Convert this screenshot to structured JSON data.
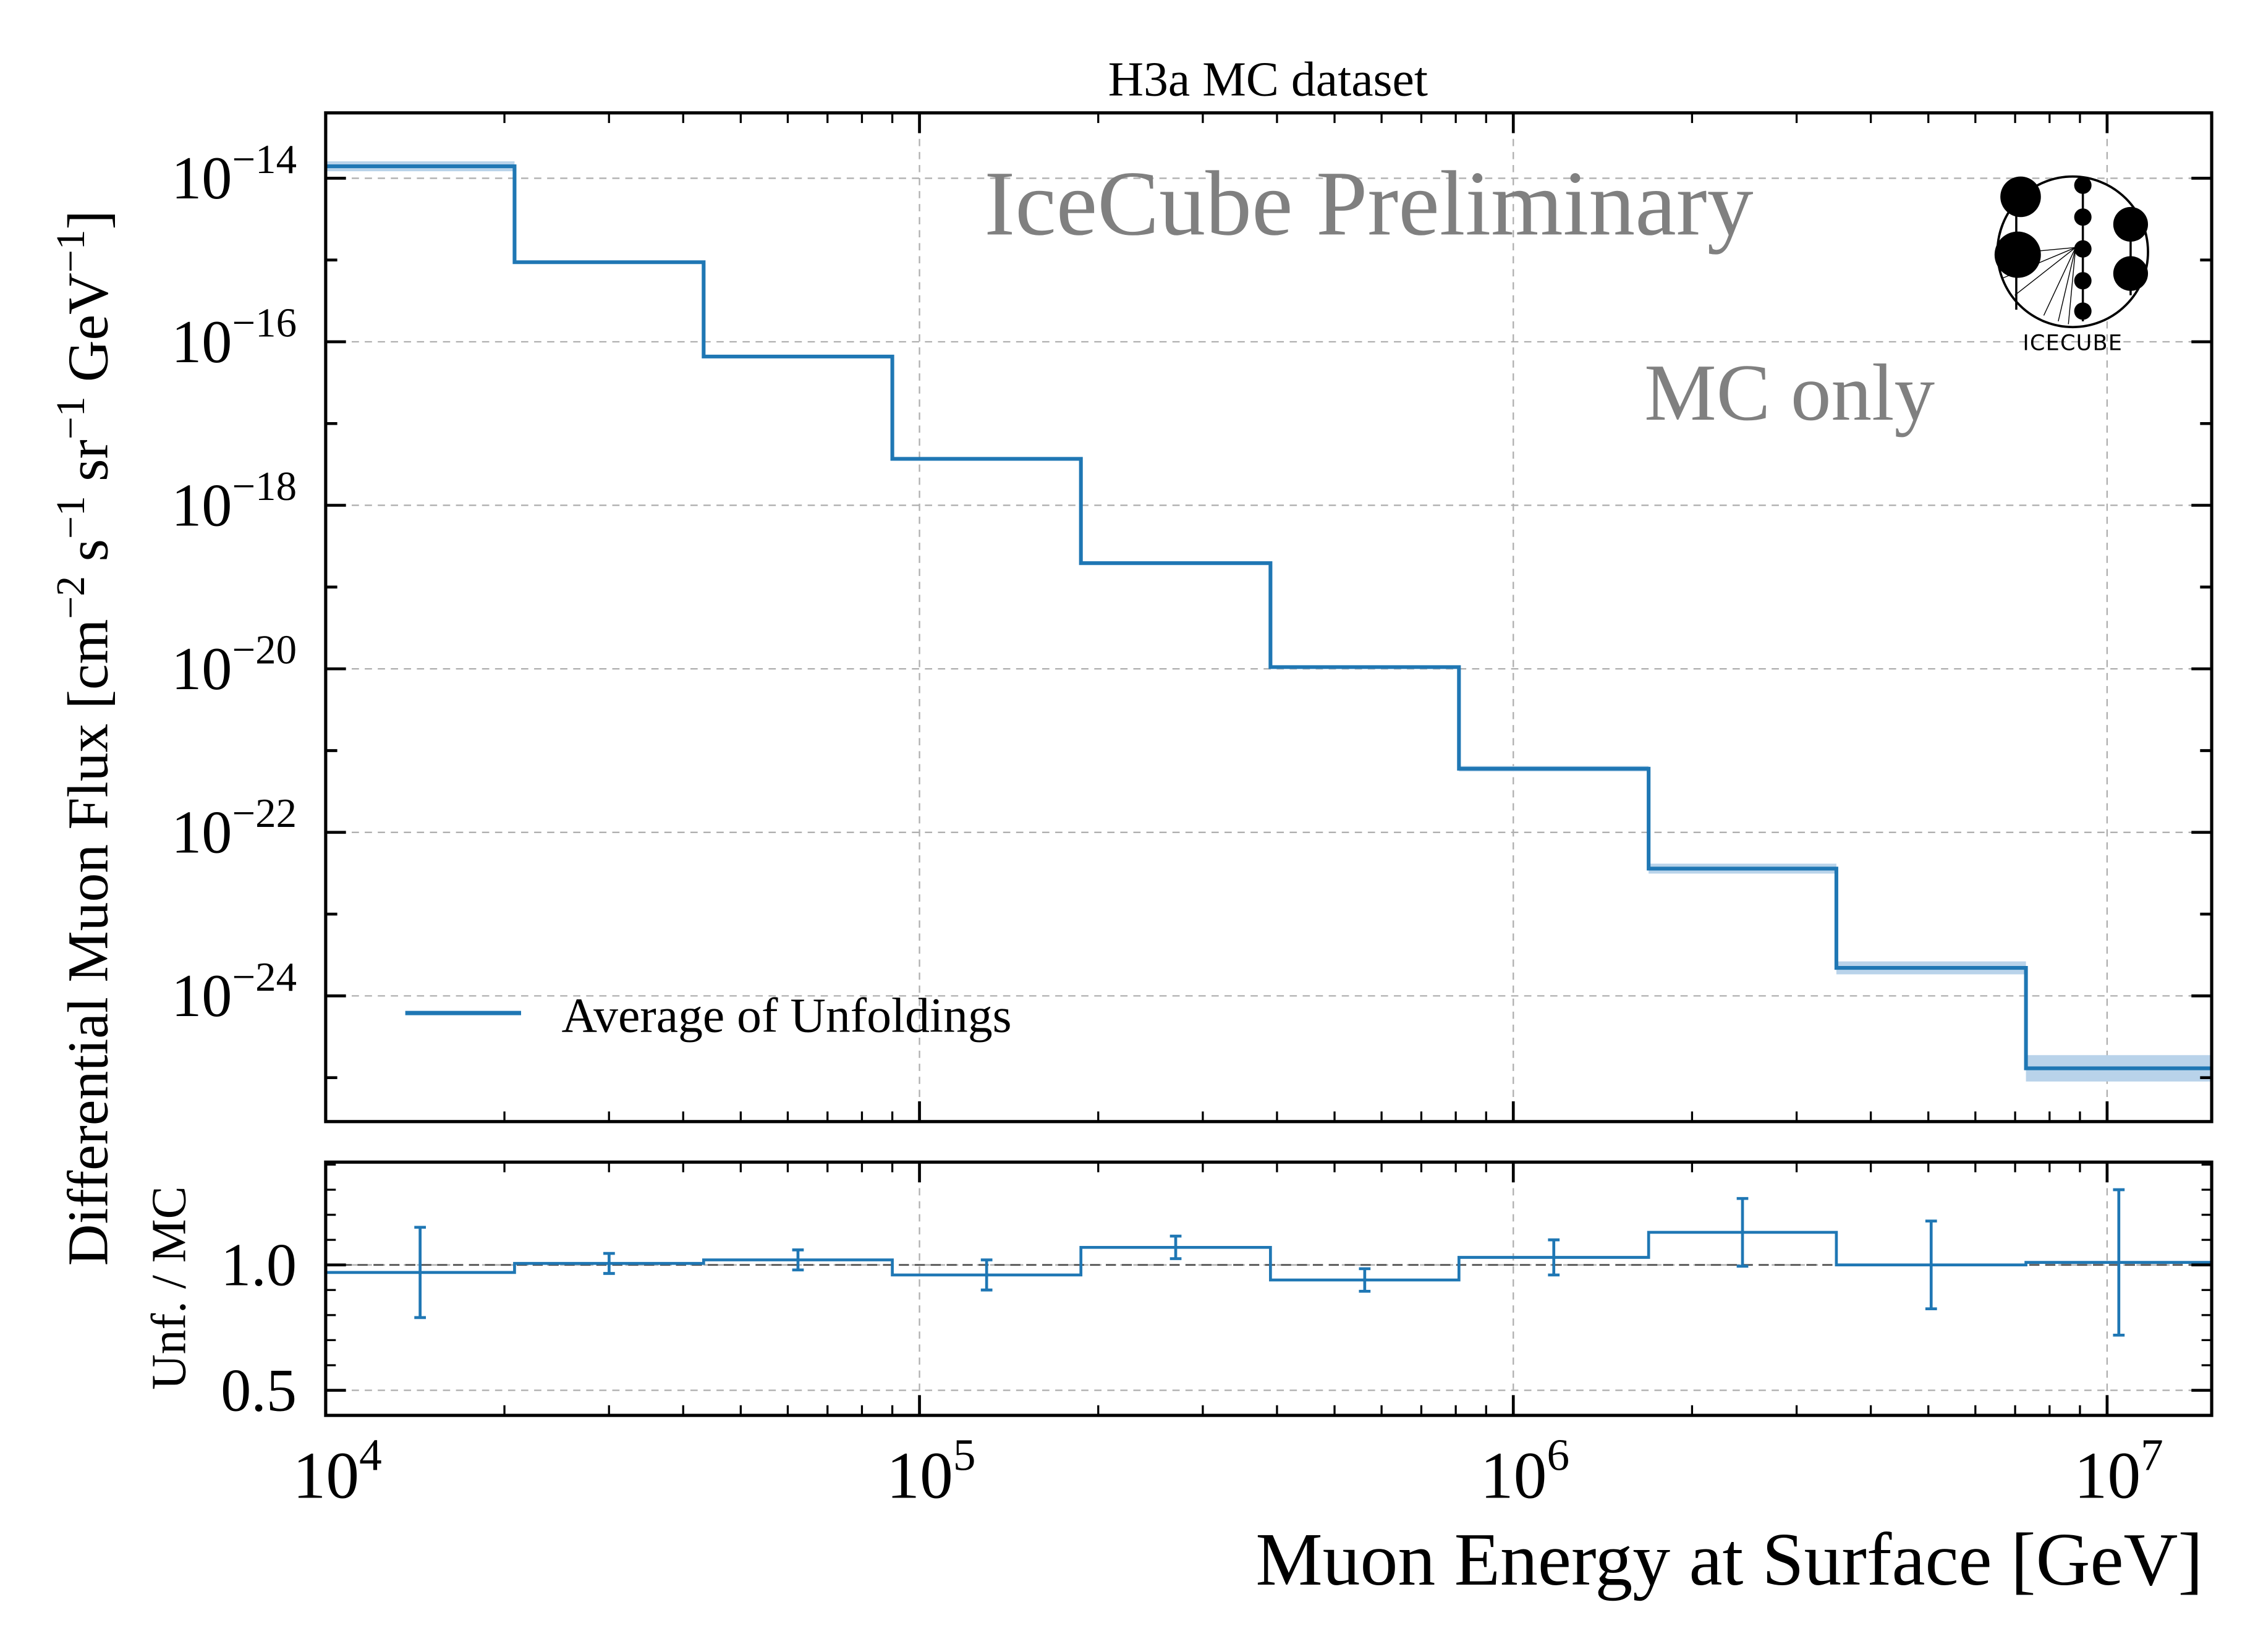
{
  "chart_data": [
    {
      "type": "line",
      "drawstyle": "steps",
      "title": "H3a MC dataset",
      "ylabel": "Differential Muon Flux [cm^{-2} s^{-1} sr^{-1} GeV^{-1}]",
      "ylabel_parts": [
        "Differential Muon Flux [cm",
        "−2",
        " s",
        "−1",
        " sr",
        "−1",
        " GeV",
        "−1",
        "]"
      ],
      "xscale": "log",
      "yscale": "log",
      "xlim": [
        10000,
        15000000
      ],
      "ylim": [
        6.3e-14,
        2.9e-26
      ],
      "y_tick_labels": [
        {
          "value": 1e-14,
          "base": "10",
          "exp": "−14"
        },
        {
          "value": 1e-16,
          "base": "10",
          "exp": "−16"
        },
        {
          "value": 1e-18,
          "base": "10",
          "exp": "−18"
        },
        {
          "value": 1e-20,
          "base": "10",
          "exp": "−20"
        },
        {
          "value": 1e-22,
          "base": "10",
          "exp": "−22"
        },
        {
          "value": 1e-24,
          "base": "10",
          "exp": "−24"
        }
      ],
      "grid": true,
      "bin_edges": [
        10000,
        20800,
        43300,
        90000,
        187000,
        390000,
        810000,
        1690000,
        3500000,
        7300000,
        15000000
      ],
      "series": [
        {
          "name": "Average of Unfoldings",
          "color": "#1f77b4",
          "values": [
            1.4e-14,
            9.4e-16,
            6.6e-17,
            3.7e-18,
            1.96e-19,
            1.05e-20,
            6e-22,
            3.6e-23,
            2.2e-24,
            1.3e-25
          ],
          "band_factor": [
            1.15,
            1.05,
            1.05,
            1.05,
            1.05,
            1.05,
            1.08,
            1.15,
            1.2,
            1.45
          ],
          "band_color": "#b9d3ea"
        }
      ],
      "legend": {
        "placement": "lower-left",
        "label": "Average of Unfoldings"
      },
      "annotations": {
        "preliminary": "IceCube Preliminary",
        "mc_only": "MC only",
        "logo": "IceCube"
      },
      "annotation_color": "#808080"
    },
    {
      "type": "line",
      "drawstyle": "steps",
      "ylabel": "Unf. / MC",
      "xlabel": "Muon Energy at Surface [GeV]",
      "xscale": "log",
      "xlim": [
        10000,
        15000000
      ],
      "ylim": [
        0.4,
        1.41
      ],
      "x_tick_labels": [
        {
          "value": 10000,
          "base": "10",
          "exp": "4"
        },
        {
          "value": 100000,
          "base": "10",
          "exp": "5"
        },
        {
          "value": 1000000,
          "base": "10",
          "exp": "6"
        },
        {
          "value": 10000000,
          "base": "10",
          "exp": "7"
        }
      ],
      "y_tick_labels": [
        {
          "value": 0.5,
          "label": "0.5"
        },
        {
          "value": 1.0,
          "label": "1.0"
        }
      ],
      "reference_line": 1.0,
      "grid": true,
      "bin_edges": [
        10000,
        20800,
        43300,
        90000,
        187000,
        390000,
        810000,
        1690000,
        3500000,
        7300000,
        15000000
      ],
      "series": [
        {
          "color": "#1f77b4",
          "values": [
            0.97,
            1.006,
            1.02,
            0.96,
            1.07,
            0.94,
            1.03,
            1.13,
            1.0,
            1.01
          ],
          "errors": [
            0.18,
            0.04,
            0.04,
            0.06,
            0.045,
            0.045,
            0.07,
            0.135,
            0.175,
            0.29
          ]
        }
      ]
    }
  ]
}
